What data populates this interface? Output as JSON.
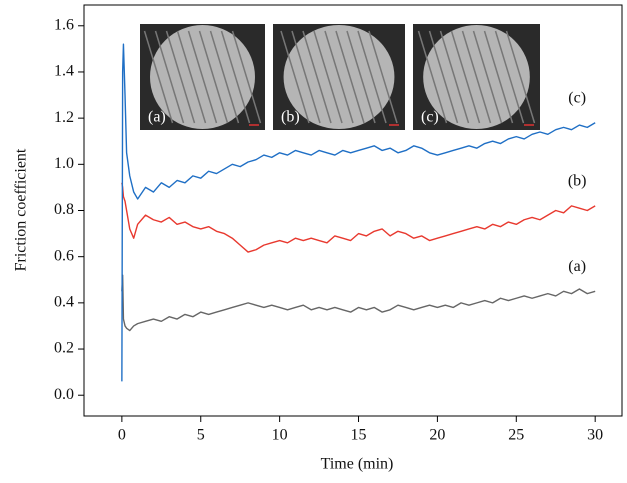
{
  "chart_data": {
    "type": "line",
    "xlabel": "Time (min)",
    "ylabel": "Friction coefficient",
    "x": [
      0,
      0.05,
      0.1,
      0.2,
      0.3,
      0.5,
      0.75,
      1,
      1.5,
      2,
      2.5,
      3,
      3.5,
      4,
      4.5,
      5,
      5.5,
      6,
      6.5,
      7,
      7.5,
      8,
      8.5,
      9,
      9.5,
      10,
      10.5,
      11,
      11.5,
      12,
      12.5,
      13,
      13.5,
      14,
      14.5,
      15,
      15.5,
      16,
      16.5,
      17,
      17.5,
      18,
      18.5,
      19,
      19.5,
      20,
      20.5,
      21,
      21.5,
      22,
      22.5,
      23,
      23.5,
      24,
      24.5,
      25,
      25.5,
      26,
      26.5,
      27,
      27.5,
      28,
      28.5,
      29,
      29.5,
      30
    ],
    "series": [
      {
        "name": "(a)",
        "color": "#666666",
        "values": [
          0.45,
          0.52,
          0.33,
          0.3,
          0.29,
          0.28,
          0.3,
          0.31,
          0.32,
          0.33,
          0.32,
          0.34,
          0.33,
          0.35,
          0.34,
          0.36,
          0.35,
          0.36,
          0.37,
          0.38,
          0.39,
          0.4,
          0.39,
          0.38,
          0.39,
          0.38,
          0.37,
          0.38,
          0.39,
          0.37,
          0.38,
          0.37,
          0.38,
          0.37,
          0.36,
          0.38,
          0.37,
          0.38,
          0.36,
          0.37,
          0.39,
          0.38,
          0.37,
          0.38,
          0.39,
          0.38,
          0.39,
          0.38,
          0.4,
          0.39,
          0.4,
          0.41,
          0.4,
          0.42,
          0.41,
          0.42,
          0.43,
          0.42,
          0.43,
          0.44,
          0.43,
          0.45,
          0.44,
          0.46,
          0.44,
          0.45
        ]
      },
      {
        "name": "(b)",
        "color": "#e8392f",
        "values": [
          0.92,
          0.9,
          0.86,
          0.84,
          0.8,
          0.72,
          0.68,
          0.74,
          0.78,
          0.76,
          0.75,
          0.77,
          0.74,
          0.75,
          0.73,
          0.72,
          0.73,
          0.71,
          0.7,
          0.68,
          0.65,
          0.62,
          0.63,
          0.65,
          0.66,
          0.67,
          0.66,
          0.68,
          0.67,
          0.68,
          0.67,
          0.66,
          0.69,
          0.68,
          0.67,
          0.7,
          0.69,
          0.71,
          0.72,
          0.69,
          0.71,
          0.7,
          0.68,
          0.69,
          0.67,
          0.68,
          0.69,
          0.7,
          0.71,
          0.72,
          0.73,
          0.72,
          0.74,
          0.73,
          0.75,
          0.74,
          0.76,
          0.77,
          0.76,
          0.78,
          0.8,
          0.79,
          0.82,
          0.81,
          0.8,
          0.82
        ]
      },
      {
        "name": "(c)",
        "color": "#1f6fc5",
        "values": [
          0.06,
          1.4,
          1.52,
          1.3,
          1.05,
          0.95,
          0.88,
          0.85,
          0.9,
          0.88,
          0.92,
          0.9,
          0.93,
          0.92,
          0.95,
          0.94,
          0.97,
          0.96,
          0.98,
          1.0,
          0.99,
          1.01,
          1.02,
          1.04,
          1.03,
          1.05,
          1.04,
          1.06,
          1.05,
          1.04,
          1.06,
          1.05,
          1.04,
          1.06,
          1.05,
          1.06,
          1.07,
          1.08,
          1.06,
          1.07,
          1.05,
          1.06,
          1.08,
          1.07,
          1.05,
          1.04,
          1.05,
          1.06,
          1.07,
          1.08,
          1.07,
          1.09,
          1.1,
          1.09,
          1.11,
          1.12,
          1.11,
          1.13,
          1.14,
          1.13,
          1.15,
          1.16,
          1.15,
          1.17,
          1.16,
          1.18
        ]
      }
    ],
    "inset_labels": [
      "(a)",
      "(b)",
      "(c)"
    ],
    "xlim": [
      -2.4,
      31.7
    ],
    "ylim": [
      -0.09,
      1.69
    ],
    "xticks": [
      0,
      5,
      10,
      15,
      20,
      25,
      30
    ],
    "yticks": [
      {
        "value": 0,
        "label": "0.0"
      },
      0.2,
      0.4,
      0.6,
      0.8,
      {
        "value": 1,
        "label": "1.0"
      },
      1.2,
      1.4,
      1.6
    ]
  }
}
